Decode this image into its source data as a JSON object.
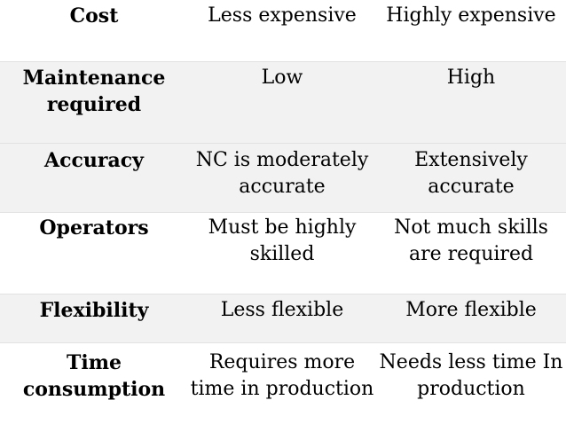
{
  "rows": [
    {
      "label": "Cost",
      "a": "Less expensive",
      "b": "Highly expensive"
    },
    {
      "label": "Maintenance required",
      "a": "Low",
      "b": "High"
    },
    {
      "label": "Accuracy",
      "a": "NC is moderately accurate",
      "b": "Extensively accurate"
    },
    {
      "label": "Operators",
      "a": "Must be highly skilled",
      "b": "Not much skills are required"
    },
    {
      "label": "Flexibility",
      "a": "Less flexible",
      "b": "More flexible"
    },
    {
      "label": "Time consumption",
      "a": "Requires more time in production",
      "b": "Needs less time In production"
    }
  ]
}
